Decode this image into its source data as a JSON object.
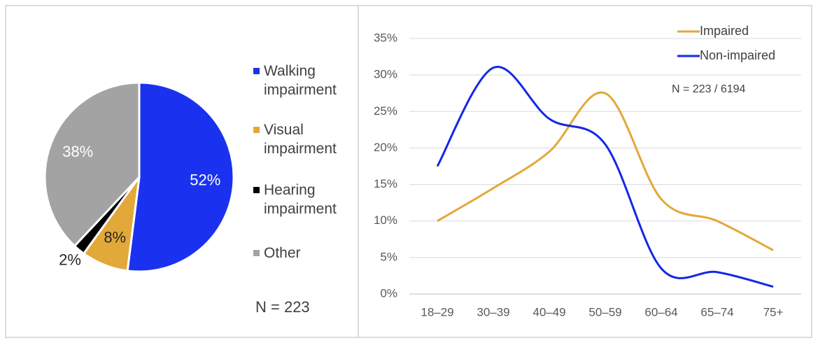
{
  "chart_data": [
    {
      "type": "pie",
      "categories": [
        "Walking impairment",
        "Visual impairment",
        "Hearing impairment",
        "Other"
      ],
      "values": [
        52,
        8,
        2,
        38
      ],
      "value_labels": [
        "52%",
        "8%",
        "2%",
        "38%"
      ],
      "colors": [
        "#1a32f0",
        "#e3a83a",
        "#000000",
        "#a3a3a3"
      ],
      "annotation": "N = 223"
    },
    {
      "type": "line",
      "categories": [
        "18–29",
        "30–39",
        "40–49",
        "50–59",
        "60–64",
        "65–74",
        "75+"
      ],
      "series": [
        {
          "name": "Impaired",
          "color": "#e3a83a",
          "values": [
            10,
            14.5,
            19.5,
            27.5,
            13,
            10,
            6
          ]
        },
        {
          "name": "Non-impaired",
          "color": "#1328e6",
          "values": [
            17.5,
            31,
            24,
            20.5,
            3.5,
            3,
            1
          ]
        }
      ],
      "ylim": [
        0,
        35
      ],
      "yticks": [
        {
          "value": 0,
          "label": "0%"
        },
        {
          "value": 5,
          "label": "5%"
        },
        {
          "value": 10,
          "label": "10%"
        },
        {
          "value": 15,
          "label": "15%"
        },
        {
          "value": 20,
          "label": "20%"
        },
        {
          "value": 25,
          "label": "25%"
        },
        {
          "value": 30,
          "label": "30%"
        },
        {
          "value": 35,
          "label": "35%"
        }
      ],
      "grid": true,
      "legend": "top-right",
      "annotation": "N = 223 / 6194"
    }
  ]
}
